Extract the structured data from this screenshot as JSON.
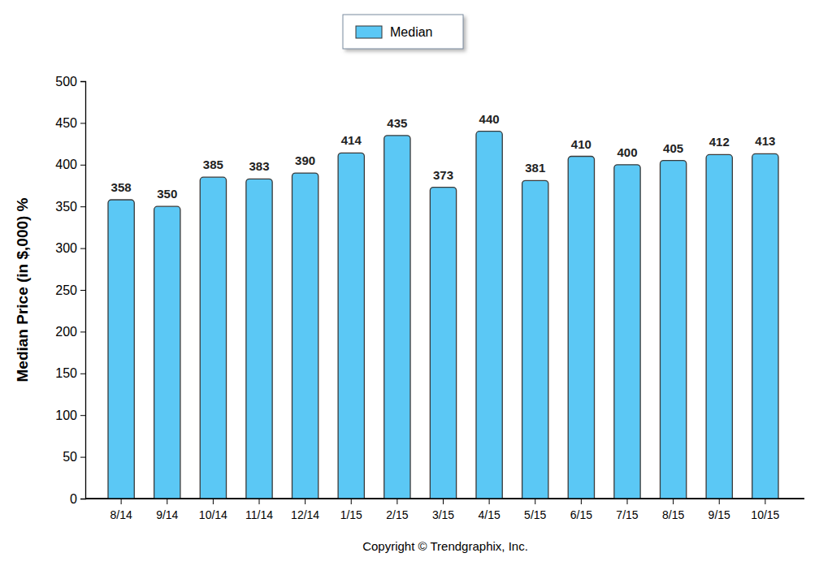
{
  "chart_data": {
    "type": "bar",
    "y_label": "Median Price (in $,000) %",
    "categories": [
      "8/14",
      "9/14",
      "10/14",
      "11/14",
      "12/14",
      "1/15",
      "2/15",
      "3/15",
      "4/15",
      "5/15",
      "6/15",
      "7/15",
      "8/15",
      "9/15",
      "10/15"
    ],
    "series": [
      {
        "name": "Median",
        "color": "#5bc8f5",
        "values": [
          358,
          350,
          385,
          383,
          390,
          414,
          435,
          373,
          440,
          381,
          410,
          400,
          405,
          412,
          413
        ]
      }
    ],
    "ylim": [
      0,
      500
    ],
    "yticks": [
      0,
      50,
      100,
      150,
      200,
      250,
      300,
      350,
      400,
      450,
      500
    ],
    "data_labels": true,
    "legend": "top",
    "grid": false,
    "annotations": [
      "Copyright © Trendgraphix, Inc."
    ]
  }
}
